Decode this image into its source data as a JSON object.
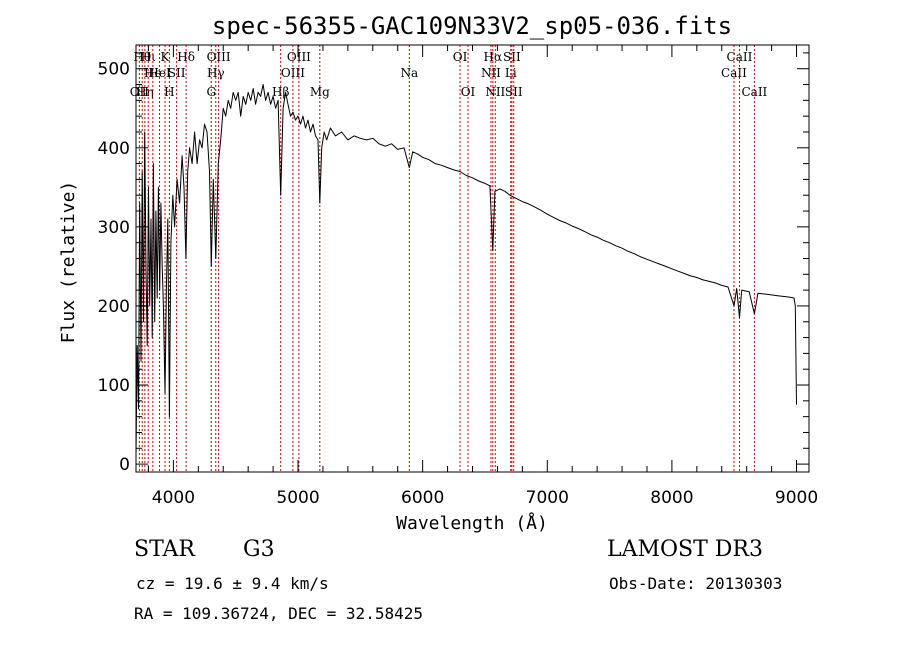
{
  "chart_data": {
    "type": "line",
    "title": "spec-56355-GAC109N33V2_sp05-036.fits",
    "xlabel": "Wavelength (Å)",
    "ylabel": "Flux (relative)",
    "xlim": [
      3700,
      9100
    ],
    "ylim": [
      -10,
      530
    ],
    "xticks": [
      4000,
      5000,
      6000,
      7000,
      8000,
      9000
    ],
    "yticks": [
      0,
      100,
      200,
      300,
      400,
      500
    ],
    "grid": false,
    "series": [
      {
        "name": "Flux",
        "points": [
          [
            3700,
            10
          ],
          [
            3710,
            150
          ],
          [
            3720,
            70
          ],
          [
            3730,
            330
          ],
          [
            3740,
            130
          ],
          [
            3750,
            370
          ],
          [
            3760,
            180
          ],
          [
            3770,
            420
          ],
          [
            3780,
            250
          ],
          [
            3790,
            150
          ],
          [
            3800,
            350
          ],
          [
            3810,
            200
          ],
          [
            3820,
            310
          ],
          [
            3830,
            160
          ],
          [
            3840,
            380
          ],
          [
            3850,
            180
          ],
          [
            3860,
            320
          ],
          [
            3870,
            210
          ],
          [
            3880,
            350
          ],
          [
            3890,
            220
          ],
          [
            3900,
            330
          ],
          [
            3910,
            250
          ],
          [
            3920,
            200
          ],
          [
            3933,
            90
          ],
          [
            3945,
            230
          ],
          [
            3955,
            310
          ],
          [
            3968,
            60
          ],
          [
            3980,
            280
          ],
          [
            3995,
            340
          ],
          [
            4010,
            300
          ],
          [
            4030,
            360
          ],
          [
            4050,
            330
          ],
          [
            4070,
            390
          ],
          [
            4085,
            350
          ],
          [
            4100,
            260
          ],
          [
            4115,
            370
          ],
          [
            4130,
            400
          ],
          [
            4150,
            380
          ],
          [
            4170,
            420
          ],
          [
            4190,
            380
          ],
          [
            4210,
            410
          ],
          [
            4230,
            400
          ],
          [
            4250,
            430
          ],
          [
            4270,
            420
          ],
          [
            4290,
            370
          ],
          [
            4304,
            250
          ],
          [
            4320,
            360
          ],
          [
            4340,
            260
          ],
          [
            4360,
            380
          ],
          [
            4380,
            410
          ],
          [
            4400,
            450
          ],
          [
            4420,
            440
          ],
          [
            4440,
            460
          ],
          [
            4460,
            450
          ],
          [
            4480,
            470
          ],
          [
            4500,
            460
          ],
          [
            4520,
            470
          ],
          [
            4540,
            440
          ],
          [
            4560,
            465
          ],
          [
            4580,
            455
          ],
          [
            4600,
            470
          ],
          [
            4620,
            460
          ],
          [
            4640,
            475
          ],
          [
            4660,
            455
          ],
          [
            4680,
            470
          ],
          [
            4700,
            465
          ],
          [
            4720,
            480
          ],
          [
            4740,
            460
          ],
          [
            4760,
            470
          ],
          [
            4780,
            455
          ],
          [
            4800,
            465
          ],
          [
            4820,
            450
          ],
          [
            4840,
            460
          ],
          [
            4861,
            340
          ],
          [
            4880,
            450
          ],
          [
            4900,
            470
          ],
          [
            4920,
            455
          ],
          [
            4940,
            440
          ],
          [
            4960,
            445
          ],
          [
            4980,
            435
          ],
          [
            5000,
            440
          ],
          [
            5020,
            430
          ],
          [
            5040,
            440
          ],
          [
            5060,
            425
          ],
          [
            5080,
            435
          ],
          [
            5100,
            420
          ],
          [
            5120,
            430
          ],
          [
            5140,
            415
          ],
          [
            5160,
            410
          ],
          [
            5175,
            330
          ],
          [
            5190,
            400
          ],
          [
            5210,
            420
          ],
          [
            5230,
            410
          ],
          [
            5260,
            425
          ],
          [
            5300,
            415
          ],
          [
            5350,
            420
          ],
          [
            5400,
            410
          ],
          [
            5450,
            415
          ],
          [
            5500,
            412
          ],
          [
            5550,
            410
          ],
          [
            5600,
            412
          ],
          [
            5650,
            405
          ],
          [
            5700,
            402
          ],
          [
            5750,
            405
          ],
          [
            5800,
            398
          ],
          [
            5850,
            400
          ],
          [
            5893,
            375
          ],
          [
            5920,
            395
          ],
          [
            5960,
            392
          ],
          [
            6000,
            388
          ],
          [
            6050,
            385
          ],
          [
            6100,
            380
          ],
          [
            6150,
            378
          ],
          [
            6200,
            375
          ],
          [
            6250,
            372
          ],
          [
            6300,
            370
          ],
          [
            6350,
            365
          ],
          [
            6400,
            362
          ],
          [
            6450,
            358
          ],
          [
            6500,
            355
          ],
          [
            6540,
            352
          ],
          [
            6563,
            270
          ],
          [
            6580,
            345
          ],
          [
            6620,
            348
          ],
          [
            6660,
            345
          ],
          [
            6700,
            340
          ],
          [
            6750,
            336
          ],
          [
            6800,
            332
          ],
          [
            6850,
            329
          ],
          [
            6900,
            325
          ],
          [
            6950,
            321
          ],
          [
            7000,
            316
          ],
          [
            7050,
            312
          ],
          [
            7100,
            308
          ],
          [
            7150,
            305
          ],
          [
            7200,
            301
          ],
          [
            7250,
            298
          ],
          [
            7300,
            294
          ],
          [
            7350,
            290
          ],
          [
            7400,
            287
          ],
          [
            7450,
            283
          ],
          [
            7500,
            280
          ],
          [
            7550,
            276
          ],
          [
            7600,
            273
          ],
          [
            7650,
            269
          ],
          [
            7700,
            266
          ],
          [
            7750,
            262
          ],
          [
            7800,
            259
          ],
          [
            7850,
            256
          ],
          [
            7900,
            253
          ],
          [
            7950,
            250
          ],
          [
            8000,
            247
          ],
          [
            8050,
            244
          ],
          [
            8100,
            241
          ],
          [
            8150,
            238
          ],
          [
            8200,
            236
          ],
          [
            8250,
            233
          ],
          [
            8300,
            231
          ],
          [
            8350,
            229
          ],
          [
            8400,
            226
          ],
          [
            8450,
            224
          ],
          [
            8498,
            200
          ],
          [
            8520,
            222
          ],
          [
            8542,
            185
          ],
          [
            8560,
            220
          ],
          [
            8620,
            218
          ],
          [
            8662,
            190
          ],
          [
            8690,
            216
          ],
          [
            8750,
            215
          ],
          [
            8800,
            214
          ],
          [
            8850,
            213
          ],
          [
            8900,
            212
          ],
          [
            8950,
            211
          ],
          [
            8980,
            210
          ],
          [
            8990,
            200
          ],
          [
            9000,
            75
          ]
        ]
      }
    ],
    "lines": [
      {
        "wavelength": 3727,
        "label": "OII",
        "row": 3
      },
      {
        "wavelength": 3750,
        "label": "Hθ",
        "row": 1
      },
      {
        "wavelength": 3771,
        "label": "Hη",
        "row": 3
      },
      {
        "wavelength": 3798,
        "label": "Hι",
        "row": 1
      },
      {
        "wavelength": 3835,
        "label": "He",
        "row": 2
      },
      {
        "wavelength": 3889,
        "label": "HeI",
        "row": 2
      },
      {
        "wavelength": 3933,
        "label": "K",
        "row": 1
      },
      {
        "wavelength": 3968,
        "label": "H",
        "row": 3
      },
      {
        "wavelength": 4026,
        "label": "SII",
        "row": 2
      },
      {
        "wavelength": 4102,
        "label": "Hδ",
        "row": 1
      },
      {
        "wavelength": 4304,
        "label": "G",
        "row": 3
      },
      {
        "wavelength": 4340,
        "label": "Hγ",
        "row": 2
      },
      {
        "wavelength": 4363,
        "label": "OIII",
        "row": 1
      },
      {
        "wavelength": 4861,
        "label": "Hβ",
        "row": 3
      },
      {
        "wavelength": 4959,
        "label": "OIII",
        "row": 2
      },
      {
        "wavelength": 5007,
        "label": "OIII",
        "row": 1
      },
      {
        "wavelength": 5175,
        "label": "Mg",
        "row": 3
      },
      {
        "wavelength": 5893,
        "label": "Na",
        "row": 2
      },
      {
        "wavelength": 6300,
        "label": "OI",
        "row": 1
      },
      {
        "wavelength": 6364,
        "label": "OI",
        "row": 3
      },
      {
        "wavelength": 6548,
        "label": "NII",
        "row": 2
      },
      {
        "wavelength": 6563,
        "label": "Hα",
        "row": 1
      },
      {
        "wavelength": 6583,
        "label": "NII",
        "row": 3
      },
      {
        "wavelength": 6707,
        "label": "Li",
        "row": 2
      },
      {
        "wavelength": 6716,
        "label": "SII",
        "row": 1
      },
      {
        "wavelength": 6731,
        "label": "SII",
        "row": 3
      },
      {
        "wavelength": 8498,
        "label": "CaII",
        "row": 2
      },
      {
        "wavelength": 8542,
        "label": "CaII",
        "row": 1
      },
      {
        "wavelength": 8662,
        "label": "CaII",
        "row": 3
      }
    ]
  },
  "info": {
    "class_label": "STAR",
    "subclass": "G3",
    "redshift": "cz = 19.6 ± 9.4 km/s",
    "coords": "RA = 109.36724, DEC =  32.58425",
    "survey": "LAMOST DR3",
    "obs_date": "Obs-Date: 20130303"
  },
  "colors": {
    "spectrum": "#000000",
    "line_marker": "#cc0000",
    "axis": "#000000",
    "background": "#ffffff"
  }
}
